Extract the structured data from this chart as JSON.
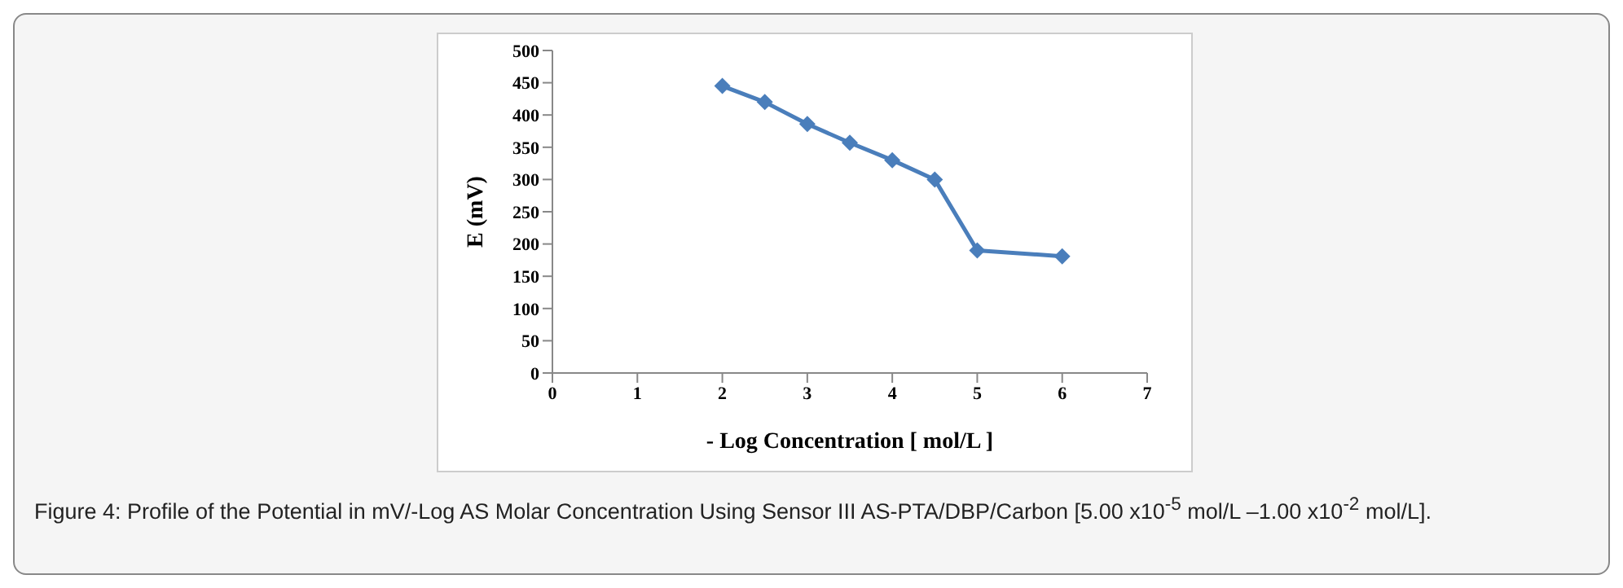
{
  "chart_data": {
    "type": "line",
    "xlabel": "- Log Concentration  [ mol/L ]",
    "ylabel": "E (mV)",
    "x": [
      2,
      2.5,
      3,
      3.5,
      4,
      4.5,
      5,
      6
    ],
    "series": [
      {
        "color": "#4a7ebb",
        "values": [
          445,
          420,
          386,
          357,
          330,
          300,
          190,
          181
        ]
      }
    ],
    "xlim": [
      0,
      7
    ],
    "xticks": [
      0,
      1,
      2,
      3,
      4,
      5,
      6,
      7
    ],
    "ylim": [
      0,
      500
    ],
    "yticks": [
      0,
      50,
      100,
      150,
      200,
      250,
      300,
      350,
      400,
      450,
      500
    ],
    "grid": false,
    "legend": false,
    "marker": "diamond",
    "line_style": "solid",
    "annotations": [
      "Figure 4: Profile of the Potential in mV/-Log AS Molar Concentration Using Sensor III AS-PTA/DBP/Carbon [5.00 x10$^{-5}$ mol/L –1.00 x10$^{-2}$ mol/L]."
    ]
  }
}
